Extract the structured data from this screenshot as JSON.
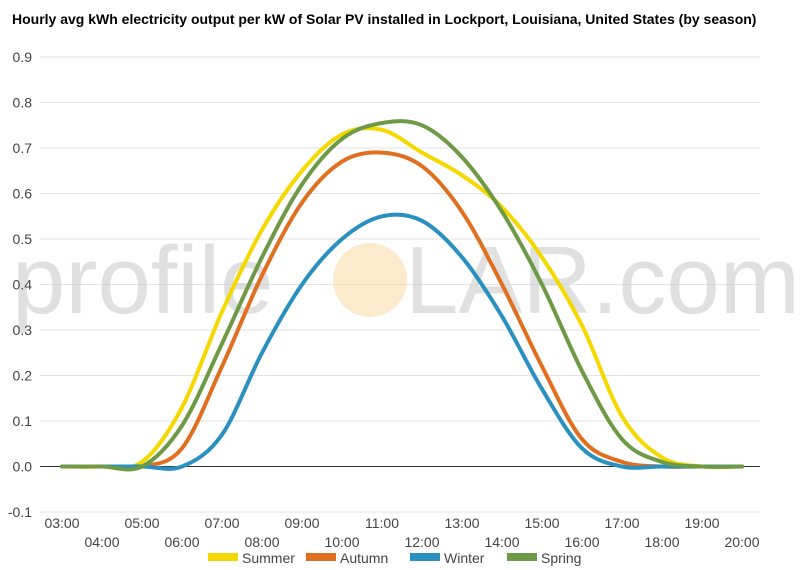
{
  "chart_data": {
    "type": "line",
    "title": "Hourly avg kWh electricity output per kW of Solar PV installed in Lockport, Louisiana, United States (by season)",
    "xlabel": "",
    "ylabel": "",
    "ylim": [
      -0.1,
      0.9
    ],
    "yticks": [
      "-0.1",
      "0.0",
      "0.1",
      "0.2",
      "0.3",
      "0.4",
      "0.5",
      "0.6",
      "0.7",
      "0.8",
      "0.9"
    ],
    "x": [
      "03:00",
      "04:00",
      "05:00",
      "06:00",
      "07:00",
      "08:00",
      "09:00",
      "10:00",
      "11:00",
      "12:00",
      "13:00",
      "14:00",
      "15:00",
      "16:00",
      "17:00",
      "18:00",
      "19:00",
      "20:00"
    ],
    "series": [
      {
        "name": "Summer",
        "color": "#f5d800",
        "values": [
          0.0,
          0.0,
          0.01,
          0.13,
          0.34,
          0.52,
          0.65,
          0.73,
          0.74,
          0.69,
          0.64,
          0.57,
          0.46,
          0.31,
          0.11,
          0.02,
          0.0,
          0.0
        ]
      },
      {
        "name": "Autumn",
        "color": "#e07020",
        "values": [
          0.0,
          0.0,
          0.0,
          0.04,
          0.22,
          0.42,
          0.58,
          0.67,
          0.69,
          0.66,
          0.56,
          0.4,
          0.22,
          0.06,
          0.01,
          0.0,
          0.0,
          0.0
        ]
      },
      {
        "name": "Winter",
        "color": "#2990c0",
        "values": [
          0.0,
          0.0,
          0.0,
          0.0,
          0.07,
          0.25,
          0.4,
          0.5,
          0.55,
          0.54,
          0.46,
          0.33,
          0.17,
          0.04,
          0.0,
          0.0,
          0.0,
          0.0
        ]
      },
      {
        "name": "Spring",
        "color": "#6e9a46",
        "values": [
          0.0,
          0.0,
          0.0,
          0.09,
          0.27,
          0.46,
          0.62,
          0.72,
          0.755,
          0.75,
          0.68,
          0.56,
          0.4,
          0.21,
          0.06,
          0.01,
          0.0,
          0.0
        ]
      }
    ],
    "grid": true,
    "legend": "bottom"
  },
  "watermark": {
    "left": "profile",
    "right": "LAR.com"
  }
}
